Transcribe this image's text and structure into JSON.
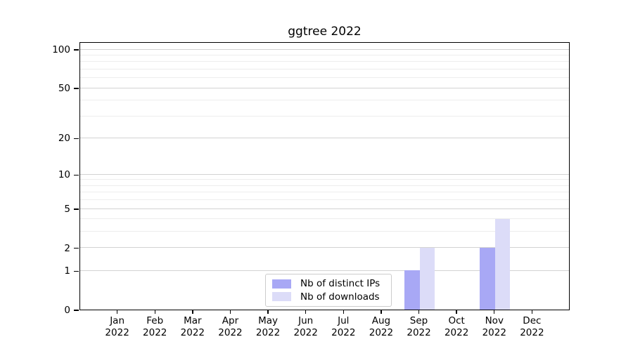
{
  "title": "ggtree 2022",
  "chart_data": {
    "type": "bar",
    "title": "ggtree 2022",
    "categories": [
      "Jan 2022",
      "Feb 2022",
      "Mar 2022",
      "Apr 2022",
      "May 2022",
      "Jun 2022",
      "Jul 2022",
      "Aug 2022",
      "Sep 2022",
      "Oct 2022",
      "Nov 2022",
      "Dec 2022"
    ],
    "series": [
      {
        "name": "Nb of distinct IPs",
        "color": "#a8a8f5",
        "values": [
          0,
          0,
          0,
          0,
          0,
          0,
          0,
          0,
          1,
          0,
          2,
          0
        ]
      },
      {
        "name": "Nb of downloads",
        "color": "#dcdcf8",
        "values": [
          0,
          0,
          0,
          0,
          0,
          0,
          0,
          0,
          2,
          0,
          4,
          0
        ]
      }
    ],
    "xlabel": "",
    "ylabel": "",
    "y_axis": {
      "scale": "log1p",
      "ticks": [
        0,
        1,
        2,
        5,
        10,
        20,
        50,
        100
      ],
      "minor_ticks": [
        3,
        4,
        6,
        7,
        8,
        9,
        30,
        40,
        60,
        70,
        80,
        90
      ],
      "max": 115
    },
    "grid": "horizontal",
    "legend_position": "inside-bottom-center",
    "colors": {
      "axis": "#000000",
      "grid_major": "#d3d3d3",
      "grid_minor": "#ededed",
      "legend_border": "#cccccc",
      "background": "#ffffff"
    }
  }
}
